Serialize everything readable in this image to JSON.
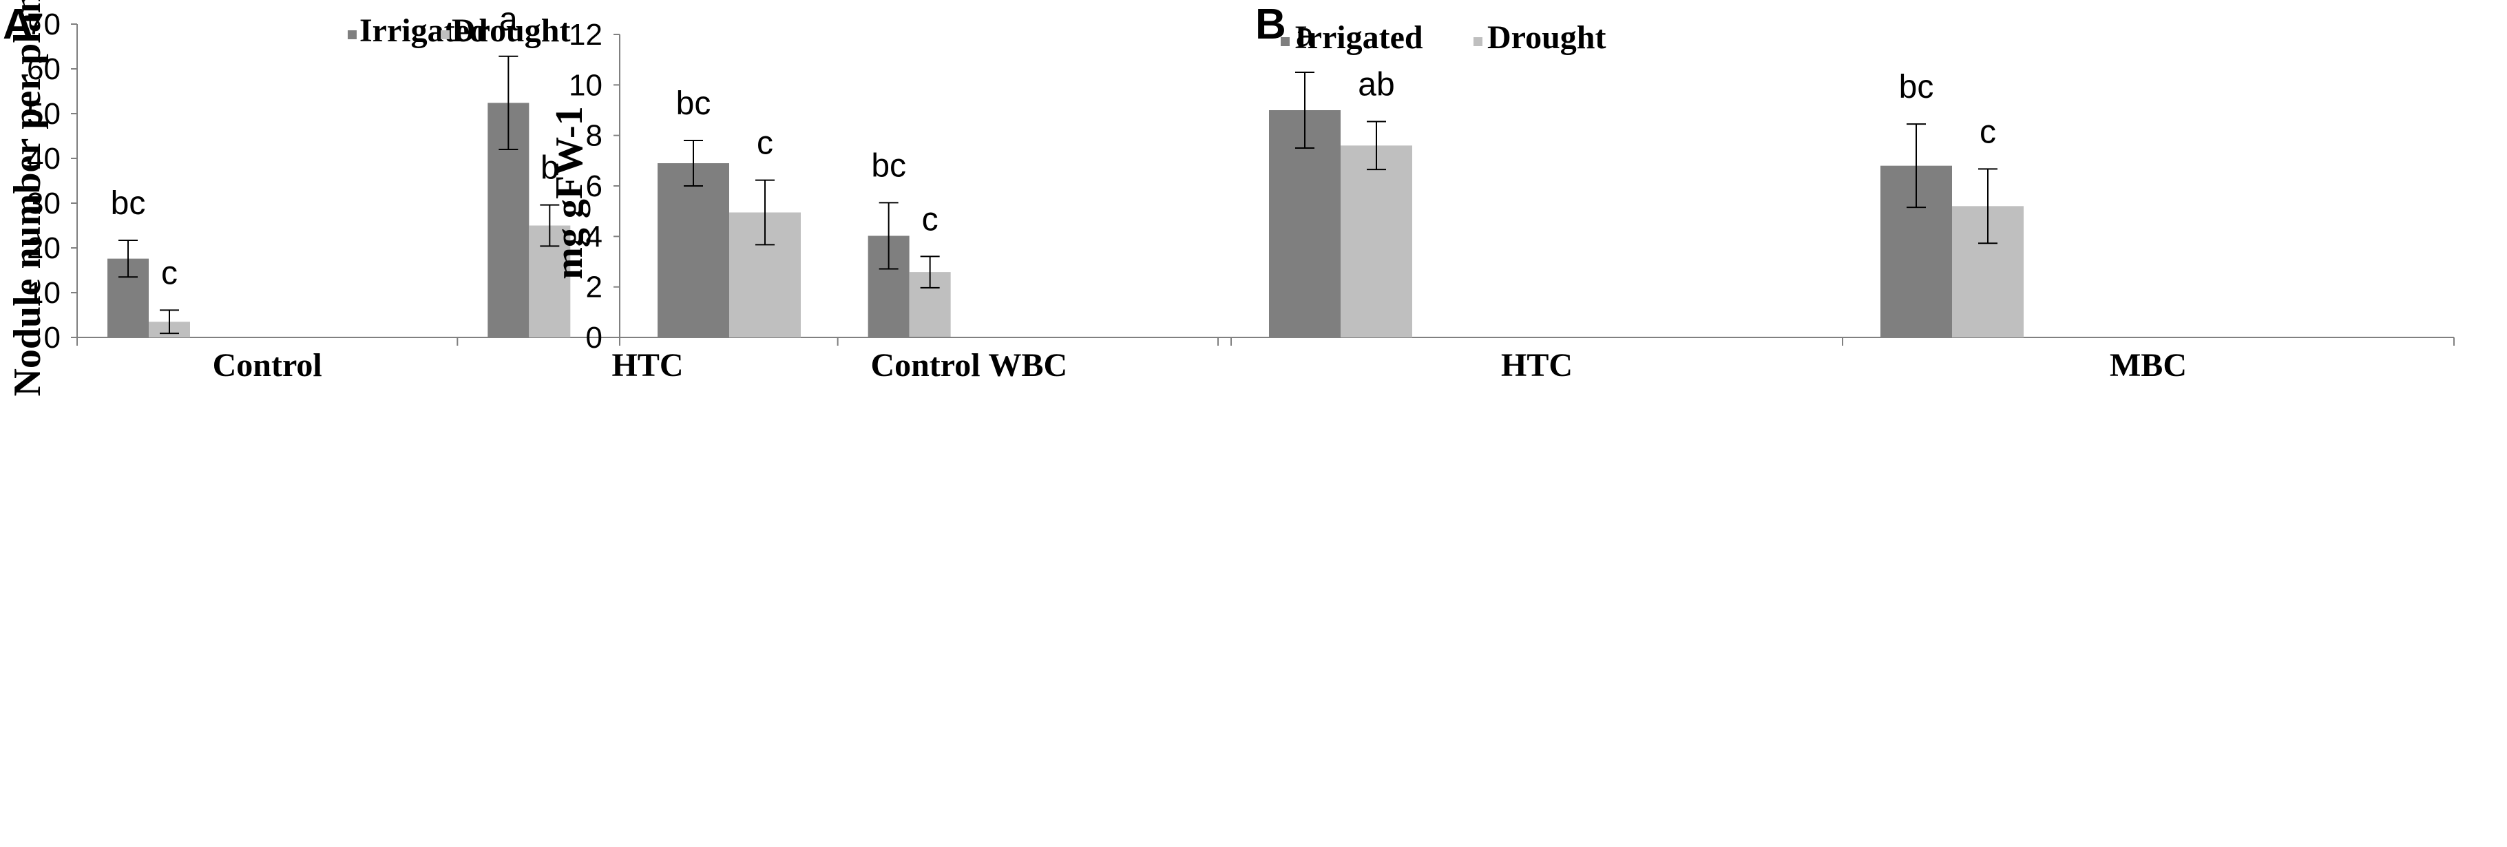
{
  "colors": {
    "irrigated": "#7f7f7f",
    "drought": "#bfbfbf",
    "axis": "#808080",
    "error": "#000000"
  },
  "chart_data": [
    {
      "panel": "A",
      "type": "bar",
      "ylabel": "Nodule number  per plant",
      "xlabel": "",
      "ylim": [
        0,
        70
      ],
      "yticks": [
        0,
        10,
        20,
        30,
        40,
        50,
        60,
        70
      ],
      "categories": [
        "Control",
        "HTC",
        "WBC"
      ],
      "legend": [
        "Irrigated",
        "Drought"
      ],
      "legend_position": "top-right",
      "series": [
        {
          "name": "Irrigated",
          "values": [
            17.6,
            52.4,
            22.7
          ],
          "errors": [
            4.1,
            10.4,
            7.4
          ],
          "labels": [
            "bc",
            "a",
            "bc"
          ]
        },
        {
          "name": "Drought",
          "values": [
            3.5,
            25.0,
            14.6
          ],
          "errors": [
            2.6,
            4.6,
            3.5
          ],
          "labels": [
            "c",
            "b",
            "c"
          ]
        }
      ]
    },
    {
      "panel": "B",
      "type": "bar",
      "ylabel": "mg gFW-1",
      "xlabel": "",
      "ylim": [
        0,
        12
      ],
      "yticks": [
        0,
        2,
        4,
        6,
        8,
        10,
        12
      ],
      "categories": [
        "Control",
        "HTC",
        "MBC"
      ],
      "legend": [
        "Irrigated",
        "Drought"
      ],
      "legend_position": "top-right",
      "series": [
        {
          "name": "Irrigated",
          "values": [
            6.9,
            9.0,
            6.8
          ],
          "errors": [
            0.9,
            1.5,
            1.65
          ],
          "labels": [
            "bc",
            "a",
            "bc"
          ]
        },
        {
          "name": "Drought",
          "values": [
            4.95,
            7.6,
            5.2
          ],
          "errors": [
            1.28,
            0.95,
            1.47
          ],
          "labels": [
            "c",
            "ab",
            "c"
          ]
        }
      ]
    }
  ]
}
